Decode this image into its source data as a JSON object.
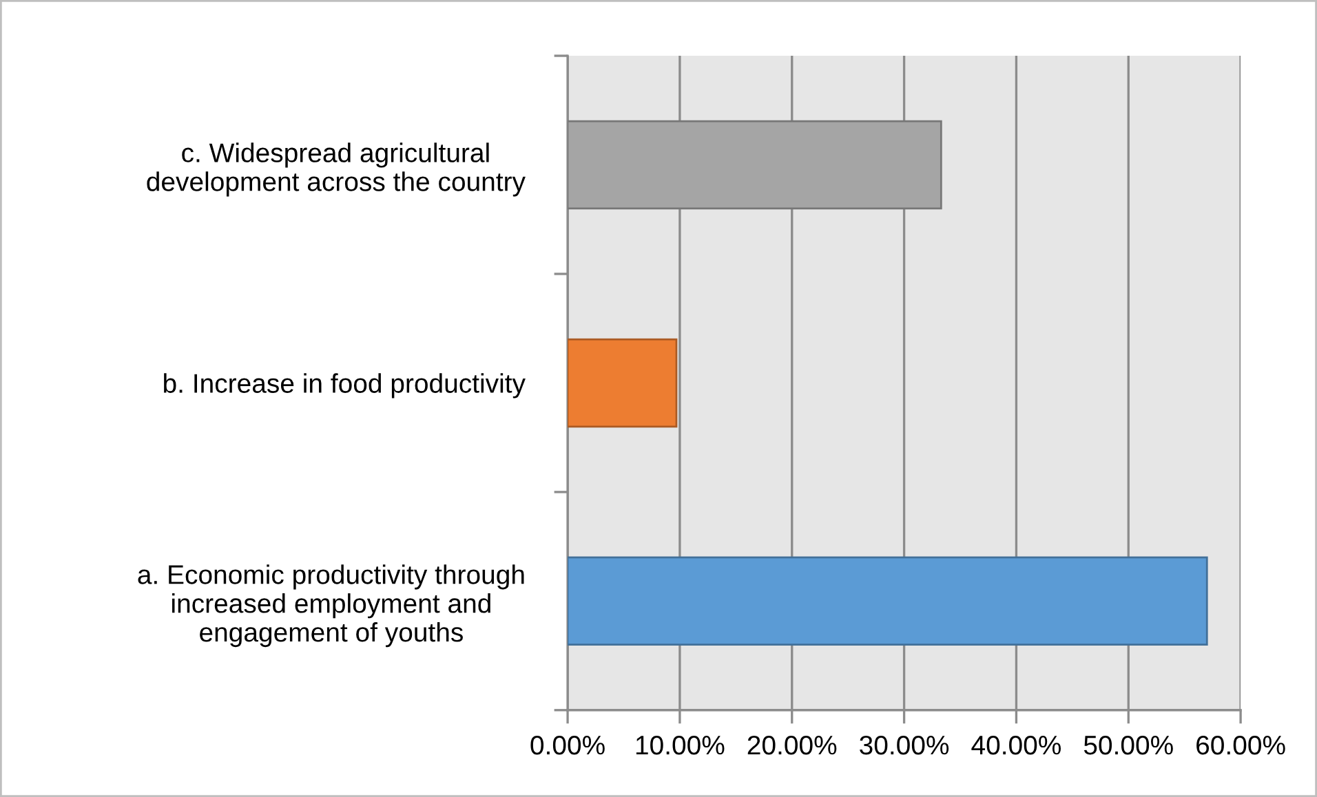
{
  "chart_data": {
    "type": "bar",
    "orientation": "horizontal",
    "categories": [
      "c. Widespread agricultural\ndevelopment across the country",
      "b. Increase in food productivity",
      "a. Economic productivity through\nincreased employment and\nengagement of youths"
    ],
    "values": [
      33.3,
      9.7,
      57.0
    ],
    "colors": [
      "#a5a5a5",
      "#ed7d31",
      "#5b9bd5"
    ],
    "xlim": [
      0,
      60
    ],
    "xticks": [
      {
        "value": 0,
        "label": "0.00%"
      },
      {
        "value": 10,
        "label": "10.00%"
      },
      {
        "value": 20,
        "label": "20.00%"
      },
      {
        "value": 30,
        "label": "30.00%"
      },
      {
        "value": 40,
        "label": "40.00%"
      },
      {
        "value": 50,
        "label": "50.00%"
      },
      {
        "value": 60,
        "label": "60.00%"
      }
    ],
    "grid": "x"
  }
}
